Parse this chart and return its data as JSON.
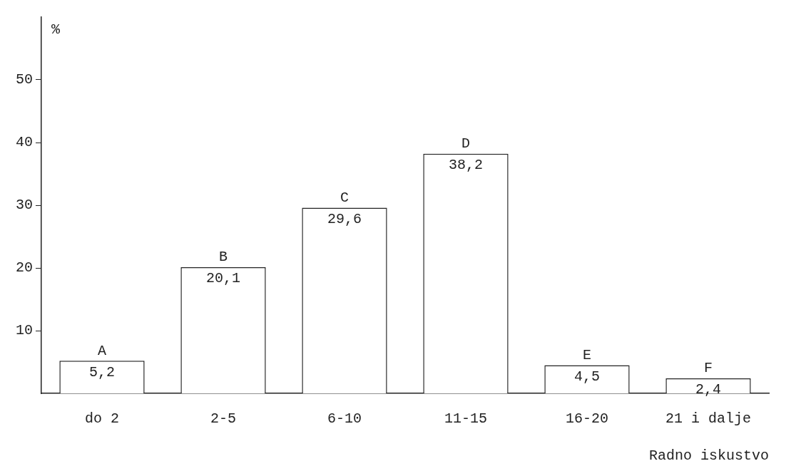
{
  "chart_data": {
    "type": "bar",
    "ylabel": "%",
    "xlabel": "Radno iskustvo",
    "categories": [
      "do 2",
      "2-5",
      "6-10",
      "11-15",
      "16-20",
      "21 i dalje"
    ],
    "values": [
      5.2,
      20.1,
      29.6,
      38.2,
      4.5,
      2.4
    ],
    "value_labels": [
      "5,2",
      "20,1",
      "29,6",
      "38,2",
      "4,5",
      "2,4"
    ],
    "color": "#ffffff",
    "ylim": [
      0,
      60
    ],
    "yticks": [
      10,
      20,
      30,
      40,
      50
    ],
    "annotations": [
      {
        "text": "A",
        "x": "do 2",
        "y": 5.2
      },
      {
        "text": "B",
        "x": "2-5",
        "y": 20.1
      },
      {
        "text": "C",
        "x": "6-10",
        "y": 29.6
      },
      {
        "text": "D",
        "x": "11-15",
        "y": 38.2
      },
      {
        "text": "E",
        "x": "16-20",
        "y": 4.5
      },
      {
        "text": "F",
        "x": "21 i dalje",
        "y": 2.4
      }
    ],
    "grid": false,
    "legend": false
  }
}
